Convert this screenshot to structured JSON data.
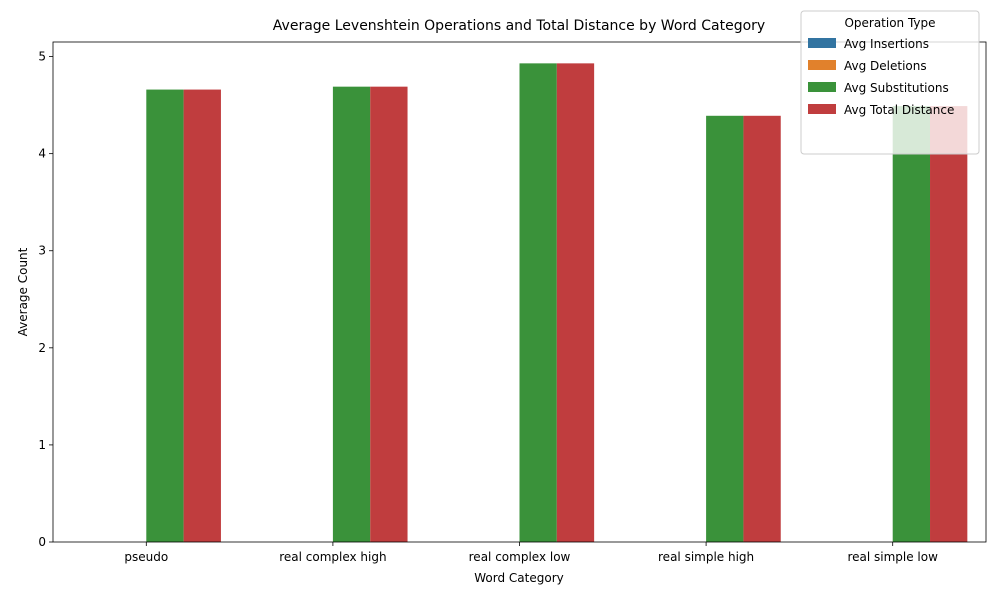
{
  "chart_data": {
    "type": "bar",
    "title": "Average Levenshtein Operations and Total Distance by Word Category",
    "xlabel": "Word Category",
    "ylabel": "Average Count",
    "categories": [
      "pseudo",
      "real complex high",
      "real complex low",
      "real simple high",
      "real simple low"
    ],
    "ylim": [
      0,
      5.15
    ],
    "yticks": [
      0,
      1,
      2,
      3,
      4,
      5
    ],
    "grid": false,
    "legend": {
      "title": "Operation Type",
      "placement": "top-right"
    },
    "series": [
      {
        "name": "Avg Insertions",
        "color": "#3274a1",
        "values": [
          0,
          0,
          0,
          0,
          0
        ]
      },
      {
        "name": "Avg Deletions",
        "color": "#e1812c",
        "values": [
          0,
          0,
          0,
          0,
          0
        ]
      },
      {
        "name": "Avg Substitutions",
        "color": "#3a923a",
        "values": [
          4.66,
          4.69,
          4.93,
          4.39,
          4.49
        ]
      },
      {
        "name": "Avg Total Distance",
        "color": "#c03d3e",
        "values": [
          4.66,
          4.69,
          4.93,
          4.39,
          4.49
        ]
      }
    ]
  }
}
